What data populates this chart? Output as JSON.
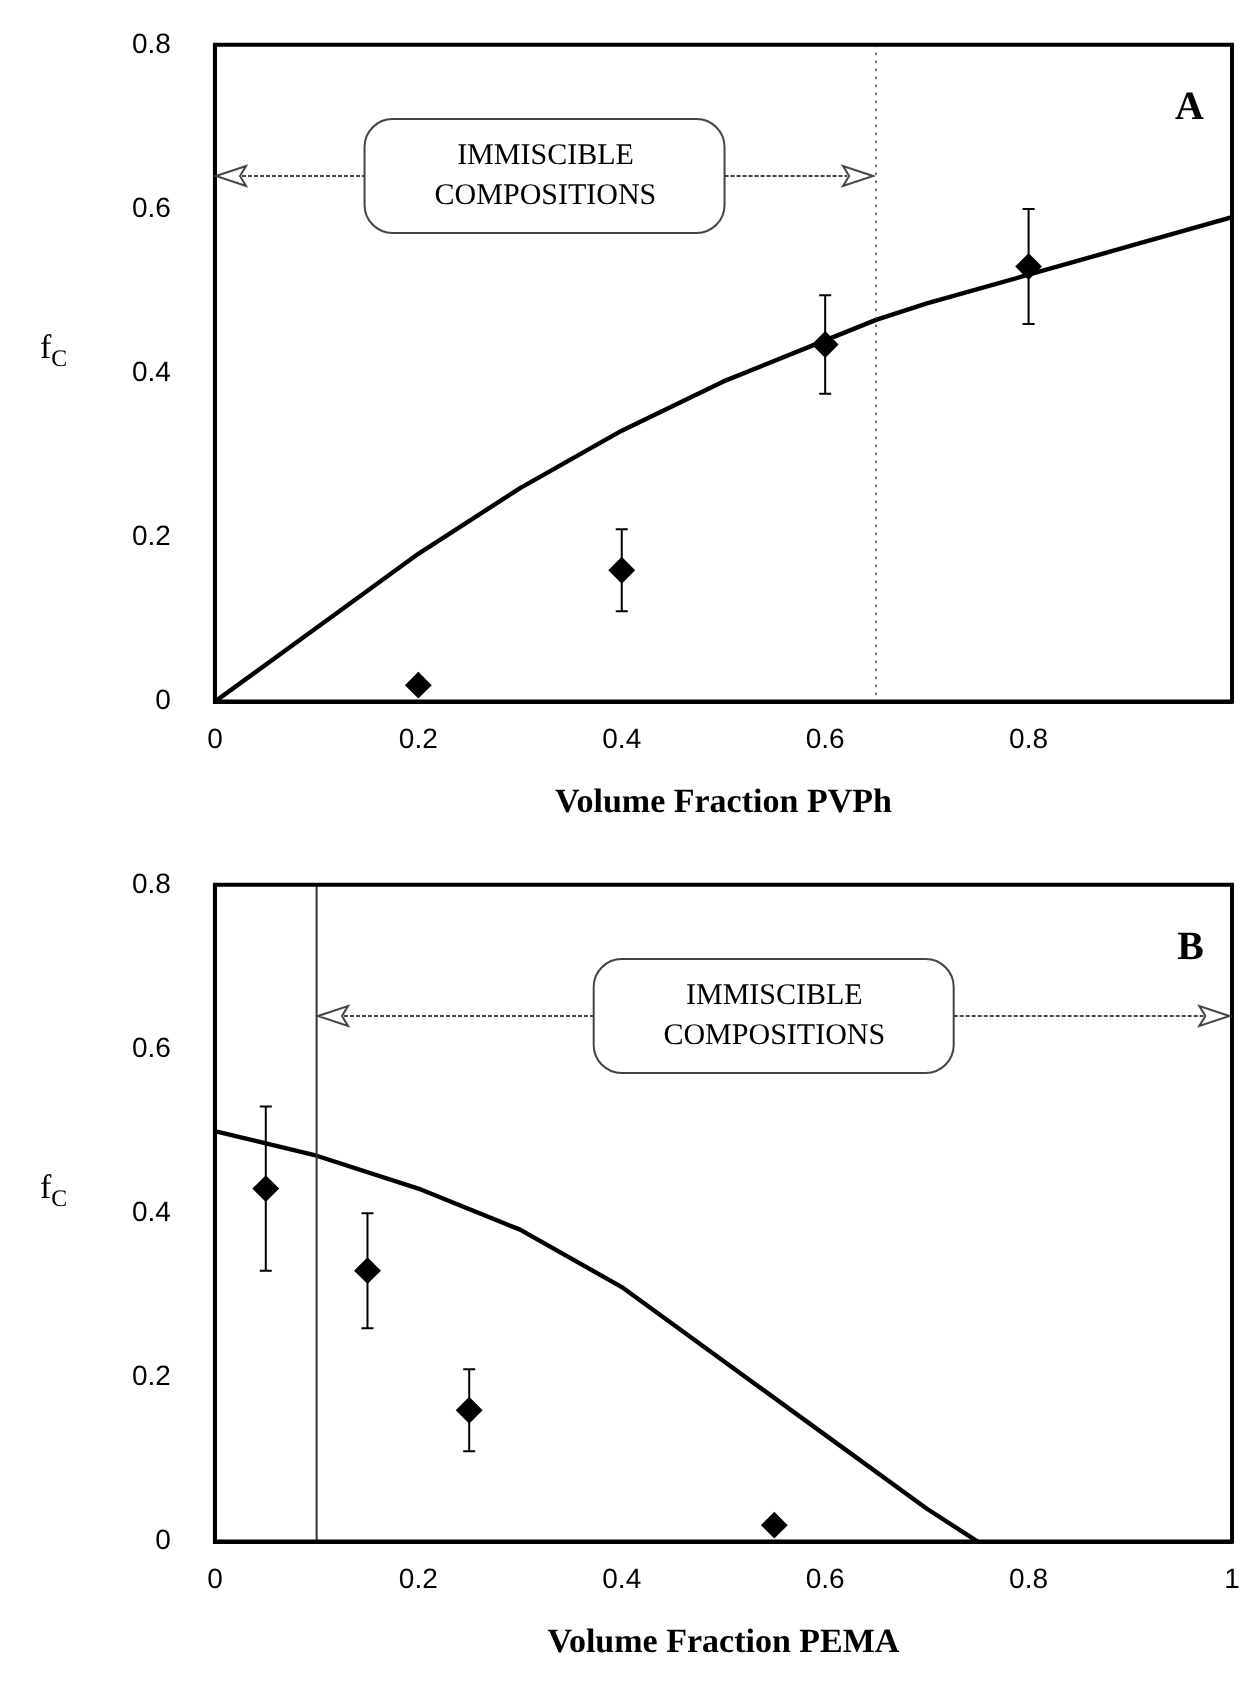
{
  "chart_data": [
    {
      "type": "scatter",
      "title": "A",
      "xlabel": "Volume Fraction PVPh",
      "ylabel": "f$_{C}$",
      "xlim": [
        0,
        1
      ],
      "xticks": [
        0,
        0.2,
        0.4,
        0.6,
        0.8
      ],
      "ylim": [
        0,
        0.8
      ],
      "yticks": [
        0,
        0.2,
        0.4,
        0.6,
        0.8
      ],
      "grid": false,
      "legend": false,
      "series": [
        {
          "type": "line",
          "color": "#000000",
          "marker": "none",
          "x": [
            0,
            0.1,
            0.2,
            0.3,
            0.4,
            0.5,
            0.6,
            0.65,
            0.7,
            0.8,
            0.9,
            1
          ],
          "values": [
            0,
            0.09,
            0.18,
            0.26,
            0.33,
            0.39,
            0.44,
            0.465,
            0.485,
            0.52,
            0.555,
            0.59
          ]
        },
        {
          "type": "scatter",
          "color": "#000000",
          "marker": "diamond",
          "x": [
            0.2,
            0.4,
            0.6,
            0.8
          ],
          "values": [
            0.02,
            0.16,
            0.435,
            0.53
          ],
          "errors": [
            null,
            [
              0.11,
              0.21
            ],
            [
              0.375,
              0.495
            ],
            [
              0.46,
              0.6
            ]
          ]
        }
      ],
      "ref_lines": [
        {
          "axis": "x",
          "value": 0.65,
          "line_style": "dotted",
          "color": "#555555"
        }
      ],
      "annotations": [
        "IMMISCIBLE COMPOSITIONS"
      ]
    },
    {
      "type": "scatter",
      "title": "B",
      "xlabel": "Volume Fraction PEMA",
      "ylabel": "f$_{C}$",
      "xlim": [
        0,
        1
      ],
      "xticks": [
        0,
        0.2,
        0.4,
        0.6,
        0.8,
        1
      ],
      "ylim": [
        0,
        0.8
      ],
      "yticks": [
        0,
        0.2,
        0.4,
        0.6,
        0.8
      ],
      "grid": false,
      "legend": false,
      "series": [
        {
          "type": "line",
          "color": "#000000",
          "marker": "none",
          "x": [
            0,
            0.1,
            0.2,
            0.3,
            0.4,
            0.5,
            0.6,
            0.7,
            0.75
          ],
          "values": [
            0.5,
            0.47,
            0.43,
            0.38,
            0.31,
            0.22,
            0.13,
            0.04,
            0
          ]
        },
        {
          "type": "scatter",
          "color": "#000000",
          "marker": "diamond",
          "x": [
            0.05,
            0.15,
            0.25,
            0.55
          ],
          "values": [
            0.43,
            0.33,
            0.16,
            0.02
          ],
          "errors": [
            [
              0.33,
              0.53
            ],
            [
              0.26,
              0.4
            ],
            [
              0.11,
              0.21
            ],
            null
          ]
        }
      ],
      "ref_lines": [
        {
          "axis": "x",
          "value": 0.1,
          "line_style": "solid",
          "color": "#333333"
        }
      ],
      "annotations": [
        "IMMISCIBLE COMPOSITIONS"
      ]
    }
  ]
}
